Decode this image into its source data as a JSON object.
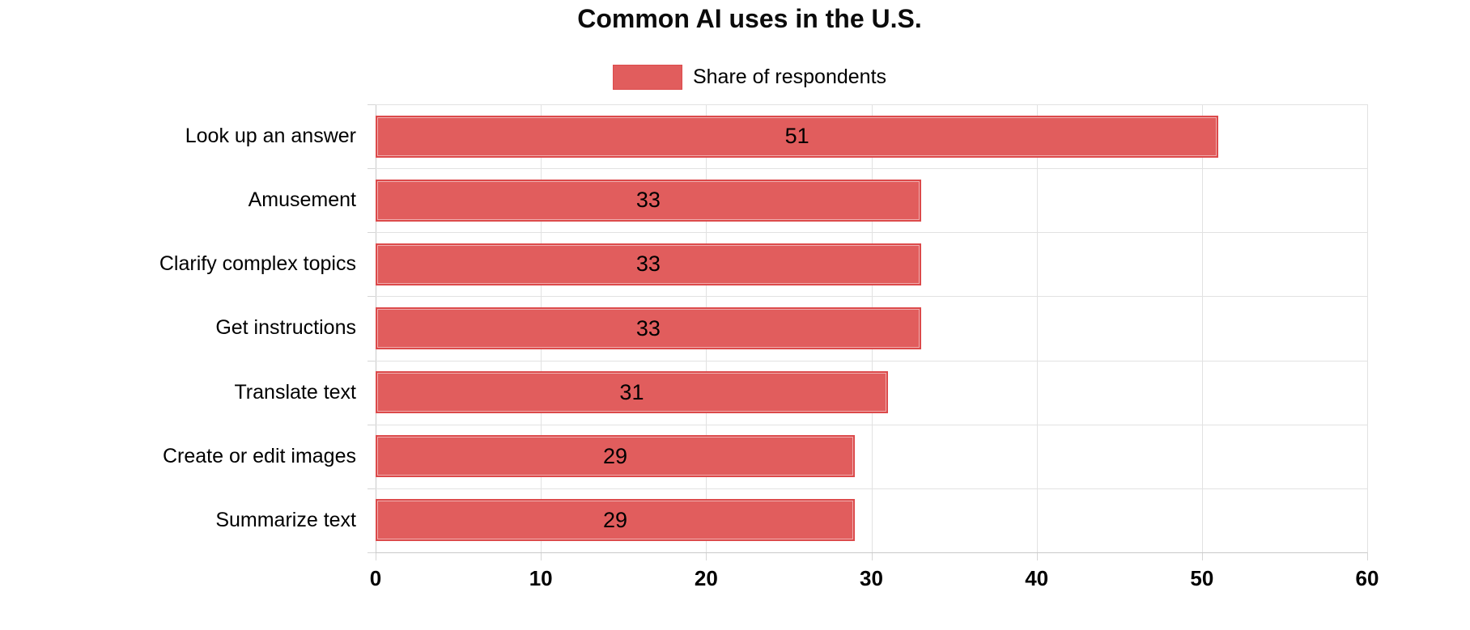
{
  "title": "Common AI uses in the U.S.",
  "legend": {
    "label": "Share of respondents"
  },
  "colors": {
    "bar_fill": "#e15d5d",
    "bar_border": "#dc4a4b",
    "grid": "#e2e2e2",
    "axis": "#c9c9c9",
    "tick": "#d6d6d6",
    "text": "#000000"
  },
  "chart_data": {
    "type": "bar",
    "orientation": "horizontal",
    "title": "Common AI uses in the U.S.",
    "legend_label": "Share of respondents",
    "legend_position": "top",
    "categories": [
      "Look up an answer",
      "Amusement",
      "Clarify complex topics",
      "Get instructions",
      "Translate text",
      "Create or edit images",
      "Summarize text"
    ],
    "series": [
      {
        "name": "Share of respondents",
        "values": [
          51,
          33,
          33,
          33,
          31,
          29,
          29
        ]
      }
    ],
    "value_labels": "inside-center",
    "xlabel": "",
    "ylabel": "",
    "xlim": [
      0,
      60
    ],
    "xticks": [
      0,
      10,
      20,
      30,
      40,
      50,
      60
    ],
    "grid": true
  }
}
